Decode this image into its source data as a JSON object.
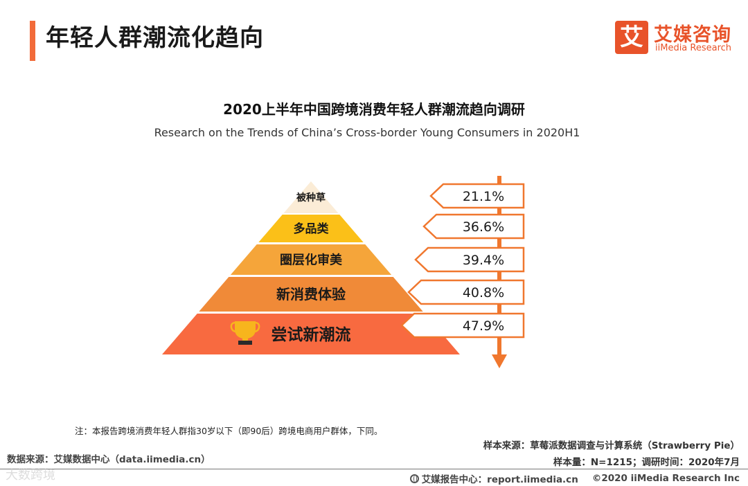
{
  "header": {
    "title": "年轻人群潮流化趋向"
  },
  "logo": {
    "mark": "艾",
    "name_cn": "艾媒咨询",
    "name_en": "iiMedia Research"
  },
  "chart_data": {
    "type": "pyramid",
    "title": "2020上半年中国跨境消费年轻人群潮流趋向调研",
    "subtitle": "Research on the Trends of China’s Cross-border Young Consumers in 2020H1",
    "categories": [
      "被种草",
      "多品类",
      "圈层化审美",
      "新消费体验",
      "尝试新潮流"
    ],
    "values": [
      21.1,
      36.6,
      39.4,
      40.8,
      47.9
    ],
    "value_labels": [
      "21.1%",
      "36.6%",
      "39.4%",
      "40.8%",
      "47.9%"
    ],
    "unit": "%",
    "layer_colors": [
      "#fbecd6",
      "#fbc018",
      "#f5a53a",
      "#f08a38",
      "#f86a40"
    ],
    "accent": "#f0772e"
  },
  "footnote": "注：本报告跨境消费年轻人群指30岁以下（即90后）跨境电商用户群体，下同。",
  "sources": {
    "left": "数据来源：艾媒数据中心（data.iimedia.cn）",
    "right_line1": "样本来源：草莓派数据调查与计算系统（Strawberry Pie）",
    "right_line2": "样本量：N=1215；调研时间：2020年7月"
  },
  "bottom": {
    "center": "艾媒报告中心：report.iimedia.cn",
    "copyright": "©2020  iiMedia Research  Inc"
  },
  "watermark": "大数跨境"
}
